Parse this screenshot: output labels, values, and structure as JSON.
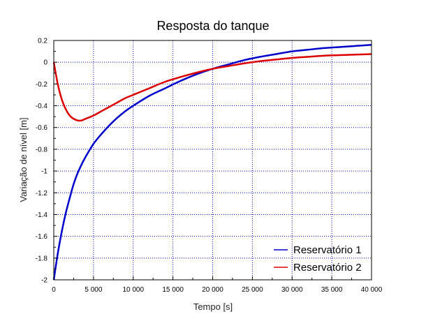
{
  "chart_data": {
    "type": "line",
    "title": "Resposta do tanque",
    "xlabel": "Tempo [s]",
    "ylabel": "Variação de nível [m]",
    "xlim": [
      0,
      40000
    ],
    "ylim": [
      -2,
      0.2
    ],
    "xticks": [
      0,
      5000,
      10000,
      15000,
      20000,
      25000,
      30000,
      35000,
      40000
    ],
    "xtick_labels": [
      "0",
      "5 000",
      "10 000",
      "15 000",
      "20 000",
      "25 000",
      "30 000",
      "35 000",
      "40 000"
    ],
    "yticks": [
      0.2,
      0,
      -0.2,
      -0.4,
      -0.6,
      -0.8,
      -1,
      -1.2,
      -1.4,
      -1.6,
      -1.8,
      -2
    ],
    "ytick_labels": [
      "0.2",
      "0",
      "-0.2",
      "-0.4",
      "-0.6",
      "-0.8",
      "-1",
      "-1.2",
      "-1.4",
      "-1.6",
      "-1.8",
      "-2"
    ],
    "grid": true,
    "legend_position": "bottom-right",
    "x": [
      0,
      500,
      1000,
      1500,
      2000,
      2500,
      3000,
      3500,
      4000,
      5000,
      6000,
      7000,
      8000,
      9000,
      10000,
      12000,
      14000,
      16000,
      18000,
      20000,
      22000,
      24000,
      26000,
      28000,
      30000,
      32000,
      34000,
      36000,
      38000,
      40000
    ],
    "series": [
      {
        "name": "Reservatório 1",
        "color": "#0000cc",
        "values": [
          -2.0,
          -1.76,
          -1.56,
          -1.39,
          -1.25,
          -1.12,
          -1.02,
          -0.94,
          -0.87,
          -0.75,
          -0.66,
          -0.58,
          -0.51,
          -0.45,
          -0.4,
          -0.31,
          -0.24,
          -0.17,
          -0.11,
          -0.06,
          -0.02,
          0.02,
          0.05,
          0.075,
          0.1,
          0.115,
          0.13,
          0.14,
          0.15,
          0.16
        ]
      },
      {
        "name": "Reservatório 2",
        "color": "#dd0000",
        "values": [
          0.0,
          -0.2,
          -0.34,
          -0.43,
          -0.49,
          -0.52,
          -0.535,
          -0.535,
          -0.52,
          -0.49,
          -0.45,
          -0.41,
          -0.37,
          -0.33,
          -0.3,
          -0.24,
          -0.18,
          -0.135,
          -0.095,
          -0.06,
          -0.035,
          -0.01,
          0.01,
          0.025,
          0.04,
          0.05,
          0.06,
          0.065,
          0.07,
          0.075
        ]
      }
    ]
  }
}
